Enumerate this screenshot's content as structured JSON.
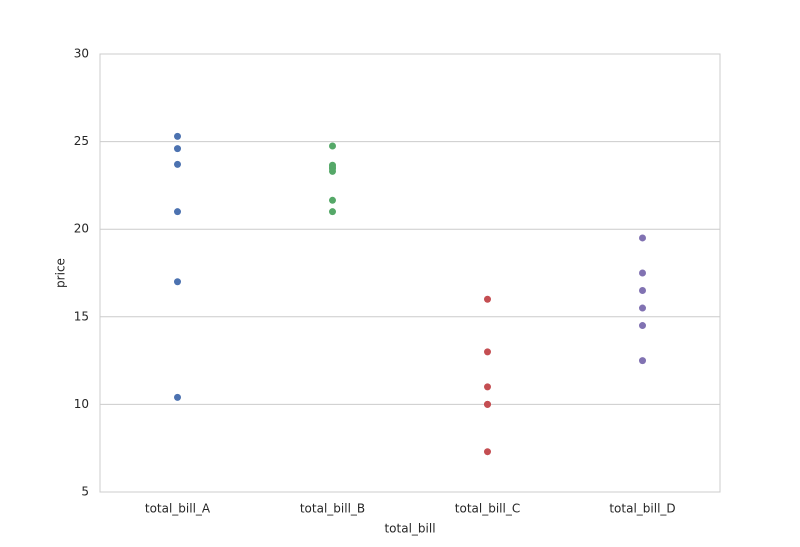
{
  "chart_data": {
    "type": "strip",
    "xlabel": "total_bill",
    "ylabel": "price",
    "categories": [
      "total_bill_A",
      "total_bill_B",
      "total_bill_C",
      "total_bill_D"
    ],
    "values": [
      [
        25.3,
        24.6,
        23.7,
        21.0,
        17.0,
        10.4
      ],
      [
        24.75,
        23.65,
        23.55,
        23.45,
        23.3,
        21.65,
        21.0
      ],
      [
        16.0,
        13.0,
        11.0,
        10.0,
        10.0,
        7.3
      ],
      [
        19.5,
        17.5,
        16.5,
        15.5,
        14.5,
        12.5
      ]
    ],
    "colors": [
      "#4c72b0",
      "#55a868",
      "#c44e52",
      "#8172b2"
    ],
    "ylim": [
      5,
      30
    ],
    "yticks": [
      5,
      10,
      15,
      20,
      25,
      30
    ],
    "grid": true
  }
}
